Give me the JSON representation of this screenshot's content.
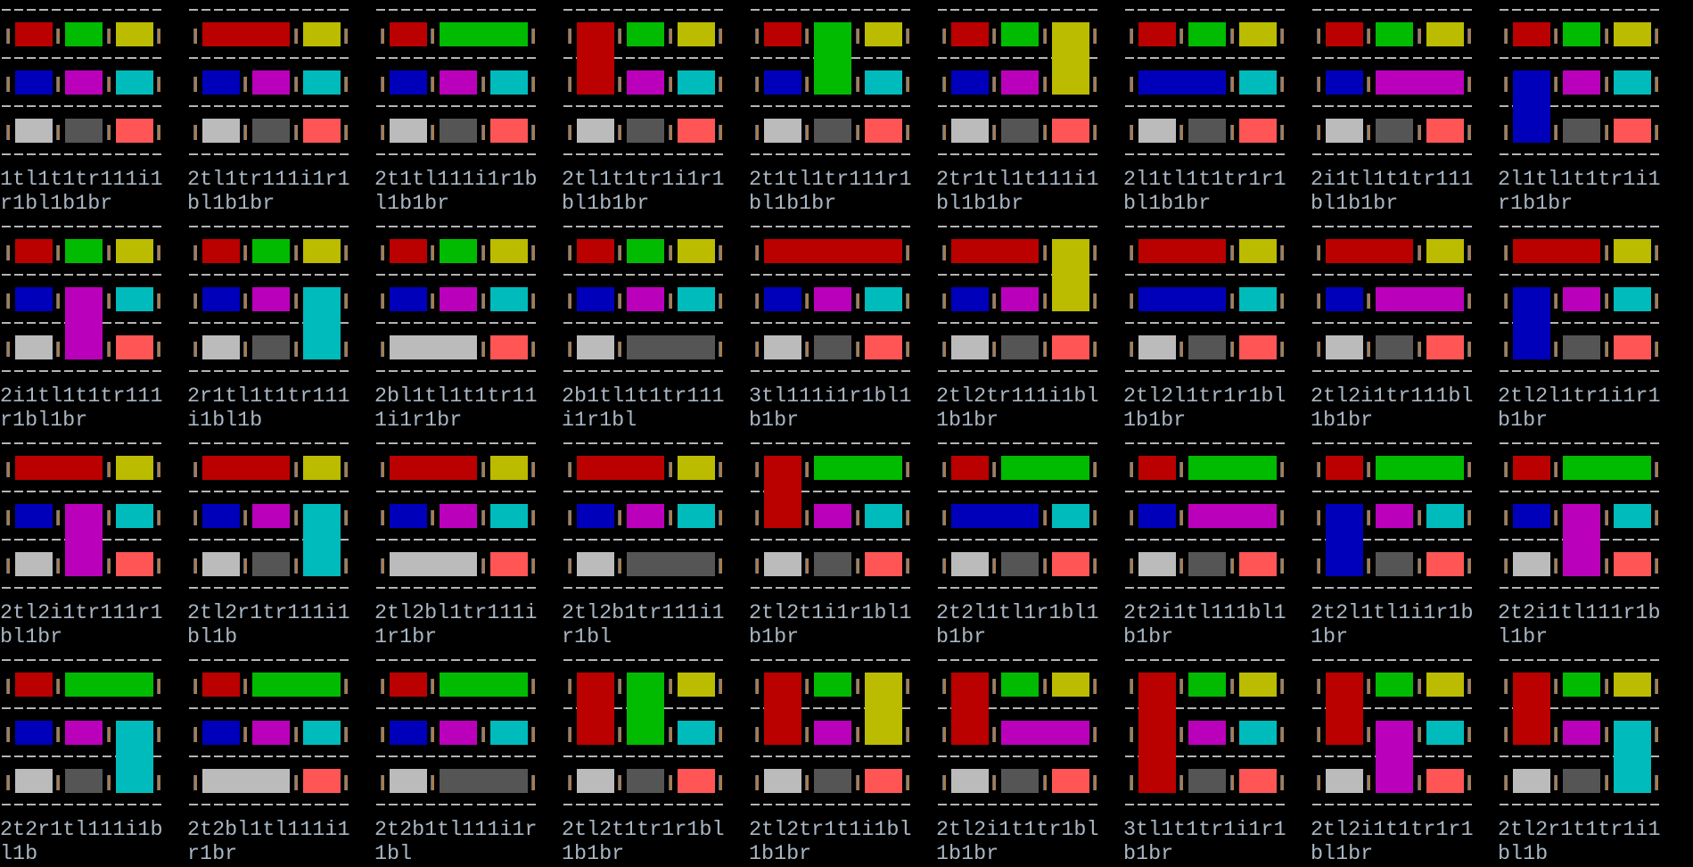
{
  "terminal": {
    "colors": {
      "R": "#bb0000",
      "G": "#00bb00",
      "Y": "#bbbb00",
      "B": "#0000bb",
      "M": "#bb00bb",
      "C": "#00bbbb",
      "W": "#bbbbbb",
      "D": "#555555",
      "L": "#ff5555"
    },
    "panels": [
      {
        "grid": [
          "RGY",
          "BMC",
          "WDL"
        ],
        "label": [
          "1tl1t1tr111i1",
          "r1bl1b1br"
        ]
      },
      {
        "grid": [
          "RRY",
          "BMC",
          "WDL"
        ],
        "label": [
          "2tl1tr111i1r1",
          "bl1b1br"
        ]
      },
      {
        "grid": [
          "RGG",
          "BMC",
          "WDL"
        ],
        "label": [
          "2t1tl111i1r1b",
          "l1b1br"
        ]
      },
      {
        "grid": [
          "RGY",
          "RMC",
          "WDL"
        ],
        "label": [
          "2tl1t1tr1i1r1",
          "bl1b1br"
        ]
      },
      {
        "grid": [
          "RGY",
          "BGC",
          "WDL"
        ],
        "label": [
          "2t1tl1tr111r1",
          "bl1b1br"
        ]
      },
      {
        "grid": [
          "RGY",
          "BMY",
          "WDL"
        ],
        "label": [
          "2tr1tl1t111i1",
          "bl1b1br"
        ]
      },
      {
        "grid": [
          "RGY",
          "BBC",
          "WDL"
        ],
        "label": [
          "2l1tl1t1tr1r1",
          "bl1b1br"
        ]
      },
      {
        "grid": [
          "RGY",
          "BMM",
          "WDL"
        ],
        "label": [
          "2i1tl1t1tr111",
          "bl1b1br"
        ]
      },
      {
        "grid": [
          "RGY",
          "BMC",
          "BDL"
        ],
        "label": [
          "2l1tl1t1tr1i1",
          "r1b1br"
        ]
      },
      {
        "grid": [
          "RGY",
          "BMC",
          "WML"
        ],
        "label": [
          "2i1tl1t1tr111",
          "r1bl1br"
        ]
      },
      {
        "grid": [
          "RGY",
          "BMC",
          "WDC"
        ],
        "label": [
          "2r1tl1t1tr111",
          "i1bl1b"
        ]
      },
      {
        "grid": [
          "RGY",
          "BMC",
          "WWL"
        ],
        "label": [
          "2bl1tl1t1tr11",
          "1i1r1br"
        ]
      },
      {
        "grid": [
          "RGY",
          "BMC",
          "WDD"
        ],
        "label": [
          "2b1tl1t1tr111",
          "i1r1bl"
        ]
      },
      {
        "grid": [
          "RRR",
          "BMC",
          "WDL"
        ],
        "label": [
          "3tl111i1r1bl1",
          "b1br"
        ]
      },
      {
        "grid": [
          "RRY",
          "BMY",
          "WDL"
        ],
        "label": [
          "2tl2tr111i1bl",
          "1b1br"
        ]
      },
      {
        "grid": [
          "RRY",
          "BBC",
          "WDL"
        ],
        "label": [
          "2tl2l1tr1r1bl",
          "1b1br"
        ]
      },
      {
        "grid": [
          "RRY",
          "BMM",
          "WDL"
        ],
        "label": [
          "2tl2i1tr111bl",
          "1b1br"
        ]
      },
      {
        "grid": [
          "RRY",
          "BMC",
          "BDL"
        ],
        "label": [
          "2tl2l1tr1i1r1",
          "b1br"
        ]
      },
      {
        "grid": [
          "RRY",
          "BMC",
          "WML"
        ],
        "label": [
          "2tl2i1tr111r1",
          "bl1br"
        ]
      },
      {
        "grid": [
          "RRY",
          "BMC",
          "WDC"
        ],
        "label": [
          "2tl2r1tr111i1",
          "bl1b"
        ]
      },
      {
        "grid": [
          "RRY",
          "BMC",
          "WWL"
        ],
        "label": [
          "2tl2bl1tr111i",
          "1r1br"
        ]
      },
      {
        "grid": [
          "RRY",
          "BMC",
          "WDD"
        ],
        "label": [
          "2tl2b1tr111i1",
          "r1bl"
        ]
      },
      {
        "grid": [
          "RGG",
          "RMC",
          "WDL"
        ],
        "label": [
          "2tl2t1i1r1bl1",
          "b1br"
        ]
      },
      {
        "grid": [
          "RGG",
          "BBC",
          "WDL"
        ],
        "label": [
          "2t2l1tl1r1bl1",
          "b1br"
        ]
      },
      {
        "grid": [
          "RGG",
          "BMM",
          "WDL"
        ],
        "label": [
          "2t2i1tl111bl1",
          "b1br"
        ]
      },
      {
        "grid": [
          "RGG",
          "BMC",
          "BDL"
        ],
        "label": [
          "2t2l1tl1i1r1b",
          "1br"
        ]
      },
      {
        "grid": [
          "RGG",
          "BMC",
          "WML"
        ],
        "label": [
          "2t2i1tl111r1b",
          "l1br"
        ]
      },
      {
        "grid": [
          "RGG",
          "BMC",
          "WDC"
        ],
        "label": [
          "2t2r1tl111i1b",
          "l1b"
        ]
      },
      {
        "grid": [
          "RGG",
          "BMC",
          "WWL"
        ],
        "label": [
          "2t2bl1tl111i1",
          "r1br"
        ]
      },
      {
        "grid": [
          "RGG",
          "BMC",
          "WDD"
        ],
        "label": [
          "2t2b1tl111i1r",
          "1bl"
        ]
      },
      {
        "grid": [
          "RGY",
          "RGC",
          "WDL"
        ],
        "label": [
          "2tl2t1tr1r1bl",
          "1b1br"
        ]
      },
      {
        "grid": [
          "RGY",
          "RMY",
          "WDL"
        ],
        "label": [
          "2tl2tr1t1i1bl",
          "1b1br"
        ]
      },
      {
        "grid": [
          "RGY",
          "RMM",
          "WDL"
        ],
        "label": [
          "2tl2i1t1tr1bl",
          "1b1br"
        ]
      },
      {
        "grid": [
          "RGY",
          "RMC",
          "RDL"
        ],
        "label": [
          "3tl1t1tr1i1r1",
          "b1br"
        ]
      },
      {
        "grid": [
          "RGY",
          "RMC",
          "WML"
        ],
        "label": [
          "2tl2i1t1tr1r1",
          "bl1br"
        ]
      },
      {
        "grid": [
          "RGY",
          "RMC",
          "WDC"
        ],
        "label": [
          "2tl2r1t1tr1i1",
          "bl1b"
        ]
      }
    ]
  }
}
